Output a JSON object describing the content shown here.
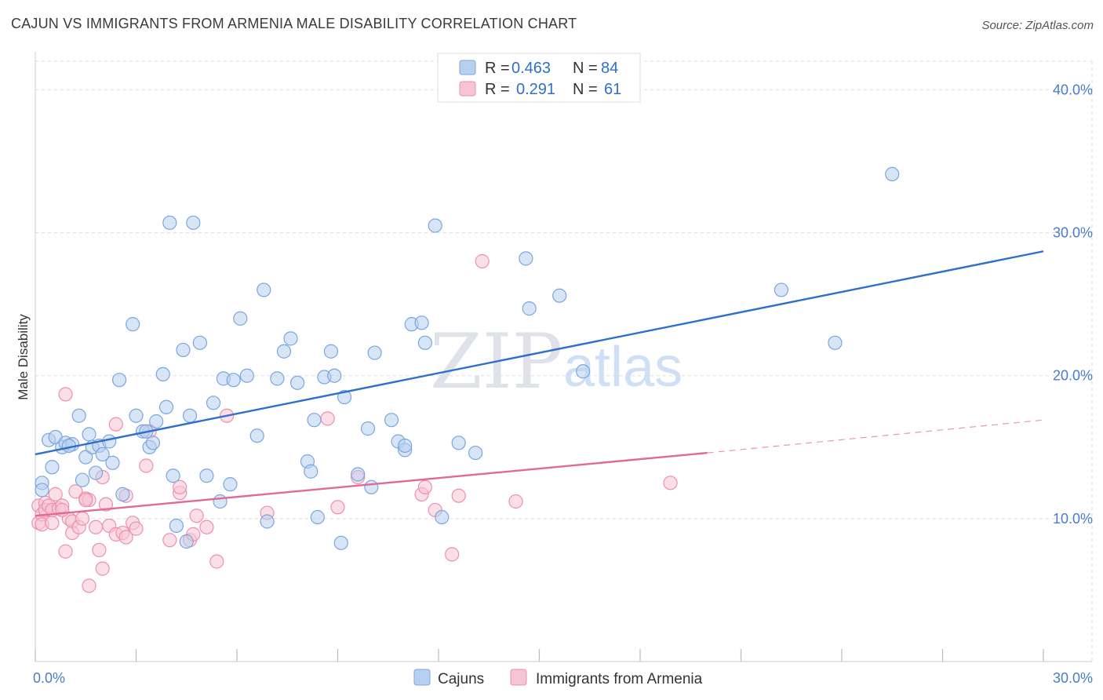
{
  "title": "CAJUN VS IMMIGRANTS FROM ARMENIA MALE DISABILITY CORRELATION CHART",
  "source": "Source: ZipAtlas.com",
  "watermark": {
    "zip": "ZIP",
    "atlas": "atlas"
  },
  "colors": {
    "cajuns_fill": "#b8d0f0",
    "cajuns_stroke": "#7aa6de",
    "cajuns_line": "#2f6fcc",
    "armenia_fill": "#f7c4d4",
    "armenia_stroke": "#ee8fae",
    "armenia_line": "#e06a95",
    "tick_text": "#4a7cc7",
    "grid": "#dddddd"
  },
  "legend": {
    "row1": {
      "r_label": "R =",
      "r_value": "0.463",
      "n_label": "N =",
      "n_value": "84"
    },
    "row2": {
      "r_label": "R =",
      "r_value": "0.291",
      "n_label": "N =",
      "n_value": "61"
    }
  },
  "chart_data": {
    "type": "scatter",
    "title": "CAJUN VS IMMIGRANTS FROM ARMENIA MALE DISABILITY CORRELATION CHART",
    "xlabel": "",
    "ylabel": "Male Disability",
    "xlim": [
      0,
      30
    ],
    "ylim": [
      0,
      42
    ],
    "x_ticks": [
      {
        "value": 0,
        "label": "0.0%"
      },
      {
        "value": 30,
        "label": "30.0%"
      }
    ],
    "y_ticks": [
      {
        "value": 10,
        "label": "10.0%"
      },
      {
        "value": 20,
        "label": "20.0%"
      },
      {
        "value": 30,
        "label": "30.0%"
      },
      {
        "value": 40,
        "label": "40.0%"
      }
    ],
    "grid": true,
    "legend_position": "top-center",
    "series": [
      {
        "name": "Cajuns",
        "r": 0.463,
        "n": 84,
        "trend": {
          "x0": 0,
          "y0": 14.5,
          "x1": 30,
          "y1": 28.7
        },
        "points": [
          [
            0.2,
            12.5
          ],
          [
            0.2,
            12.0
          ],
          [
            0.4,
            15.5
          ],
          [
            0.5,
            13.6
          ],
          [
            0.6,
            15.7
          ],
          [
            0.8,
            15.0
          ],
          [
            0.9,
            15.3
          ],
          [
            1.1,
            15.2
          ],
          [
            1.3,
            17.2
          ],
          [
            1.4,
            12.7
          ],
          [
            1.5,
            14.3
          ],
          [
            1.6,
            15.9
          ],
          [
            1.7,
            15.0
          ],
          [
            1.8,
            13.2
          ],
          [
            1.9,
            15.1
          ],
          [
            2.0,
            14.5
          ],
          [
            2.2,
            15.4
          ],
          [
            2.3,
            13.9
          ],
          [
            2.5,
            19.7
          ],
          [
            2.6,
            11.7
          ],
          [
            2.9,
            23.6
          ],
          [
            3.0,
            17.2
          ],
          [
            3.2,
            16.1
          ],
          [
            3.4,
            15.0
          ],
          [
            3.5,
            15.3
          ],
          [
            3.6,
            16.8
          ],
          [
            3.8,
            20.1
          ],
          [
            3.9,
            17.8
          ],
          [
            4.0,
            30.7
          ],
          [
            4.1,
            13.0
          ],
          [
            4.2,
            9.5
          ],
          [
            4.4,
            21.8
          ],
          [
            4.5,
            8.4
          ],
          [
            4.6,
            17.2
          ],
          [
            4.7,
            30.7
          ],
          [
            4.9,
            22.3
          ],
          [
            5.1,
            13.0
          ],
          [
            5.3,
            18.1
          ],
          [
            5.5,
            11.2
          ],
          [
            5.6,
            19.8
          ],
          [
            5.8,
            12.4
          ],
          [
            5.9,
            19.7
          ],
          [
            6.1,
            24.0
          ],
          [
            6.3,
            20.0
          ],
          [
            6.6,
            15.8
          ],
          [
            6.8,
            26.0
          ],
          [
            6.9,
            9.8
          ],
          [
            7.2,
            19.8
          ],
          [
            7.4,
            21.7
          ],
          [
            7.6,
            22.6
          ],
          [
            7.8,
            19.5
          ],
          [
            8.1,
            14.0
          ],
          [
            8.2,
            13.3
          ],
          [
            8.3,
            16.9
          ],
          [
            8.4,
            10.1
          ],
          [
            8.6,
            19.9
          ],
          [
            8.8,
            21.7
          ],
          [
            8.9,
            20.0
          ],
          [
            9.1,
            8.3
          ],
          [
            9.2,
            18.5
          ],
          [
            9.6,
            13.1
          ],
          [
            9.9,
            16.3
          ],
          [
            10.0,
            12.2
          ],
          [
            10.1,
            21.6
          ],
          [
            10.6,
            16.9
          ],
          [
            10.8,
            15.4
          ],
          [
            11.0,
            14.8
          ],
          [
            11.0,
            15.1
          ],
          [
            11.2,
            23.6
          ],
          [
            11.5,
            23.7
          ],
          [
            11.6,
            22.3
          ],
          [
            11.9,
            30.5
          ],
          [
            12.1,
            10.1
          ],
          [
            12.6,
            15.3
          ],
          [
            13.1,
            14.6
          ],
          [
            14.6,
            28.2
          ],
          [
            14.7,
            24.7
          ],
          [
            15.6,
            25.6
          ],
          [
            16.3,
            20.3
          ],
          [
            22.2,
            26.0
          ],
          [
            23.8,
            22.3
          ],
          [
            25.5,
            34.1
          ],
          [
            1.0,
            15.1
          ],
          [
            3.3,
            16.1
          ]
        ]
      },
      {
        "name": "Immigrants from Armenia",
        "r": 0.291,
        "n": 61,
        "trend": {
          "x0": 0,
          "y0": 10.2,
          "x1": 20,
          "y1": 14.6
        },
        "trend_dashed": {
          "x0": 20,
          "y0": 14.6,
          "x1": 30,
          "y1": 16.9
        },
        "points": [
          [
            0.1,
            10.9
          ],
          [
            0.1,
            9.7
          ],
          [
            0.2,
            10.3
          ],
          [
            0.2,
            9.6
          ],
          [
            0.3,
            11.1
          ],
          [
            0.3,
            10.6
          ],
          [
            0.4,
            10.9
          ],
          [
            0.5,
            9.7
          ],
          [
            0.5,
            10.6
          ],
          [
            0.6,
            11.7
          ],
          [
            0.7,
            10.7
          ],
          [
            0.8,
            10.9
          ],
          [
            0.9,
            18.7
          ],
          [
            0.9,
            7.7
          ],
          [
            1.0,
            10.0
          ],
          [
            1.1,
            9.8
          ],
          [
            1.1,
            9.0
          ],
          [
            1.2,
            11.9
          ],
          [
            1.3,
            9.4
          ],
          [
            1.4,
            10.0
          ],
          [
            1.5,
            11.4
          ],
          [
            1.6,
            11.3
          ],
          [
            1.6,
            5.3
          ],
          [
            1.8,
            9.4
          ],
          [
            1.9,
            7.8
          ],
          [
            2.0,
            6.5
          ],
          [
            2.0,
            12.9
          ],
          [
            2.1,
            11.0
          ],
          [
            2.2,
            9.5
          ],
          [
            2.4,
            16.6
          ],
          [
            2.4,
            8.9
          ],
          [
            2.6,
            9.0
          ],
          [
            2.7,
            11.6
          ],
          [
            2.7,
            8.7
          ],
          [
            2.9,
            9.7
          ],
          [
            3.0,
            9.3
          ],
          [
            3.3,
            13.7
          ],
          [
            3.4,
            16.1
          ],
          [
            4.0,
            8.5
          ],
          [
            4.3,
            11.8
          ],
          [
            4.3,
            12.2
          ],
          [
            4.6,
            8.5
          ],
          [
            4.7,
            8.9
          ],
          [
            4.8,
            10.2
          ],
          [
            5.1,
            9.4
          ],
          [
            5.4,
            7.0
          ],
          [
            5.7,
            17.2
          ],
          [
            6.9,
            10.4
          ],
          [
            8.7,
            17.0
          ],
          [
            9.0,
            10.8
          ],
          [
            9.6,
            12.9
          ],
          [
            11.5,
            11.7
          ],
          [
            11.6,
            12.2
          ],
          [
            11.9,
            10.6
          ],
          [
            12.4,
            7.5
          ],
          [
            12.6,
            11.6
          ],
          [
            13.3,
            28.0
          ],
          [
            14.3,
            11.2
          ],
          [
            18.9,
            12.5
          ],
          [
            1.5,
            11.3
          ],
          [
            0.8,
            10.6
          ]
        ]
      }
    ]
  }
}
